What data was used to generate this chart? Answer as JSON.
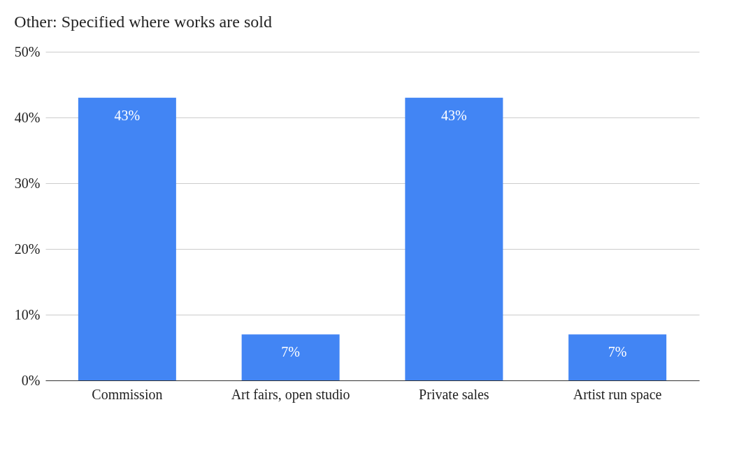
{
  "chart_data": {
    "type": "bar",
    "title": "Other: Specified where works are sold",
    "categories": [
      "Commission",
      "Art fairs, open studio",
      "Private sales",
      "Artist run space"
    ],
    "values": [
      43,
      7,
      43,
      7
    ],
    "color": "#4285f4",
    "value_labels": [
      "43%",
      "7%",
      "43%",
      "7%"
    ],
    "ylim": [
      0,
      50
    ],
    "yticks": [
      {
        "value": 0,
        "label": "0%"
      },
      {
        "value": 10,
        "label": "10%"
      },
      {
        "value": 20,
        "label": "20%"
      },
      {
        "value": 30,
        "label": "30%"
      },
      {
        "value": 40,
        "label": "40%"
      },
      {
        "value": 50,
        "label": "50%"
      }
    ],
    "grid": "y"
  }
}
